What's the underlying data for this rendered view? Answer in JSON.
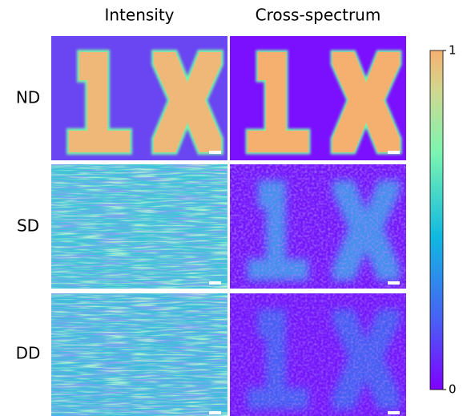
{
  "columns": [
    "Intensity",
    "Cross-spectrum"
  ],
  "rows": [
    "ND",
    "SD",
    "DD"
  ],
  "colorbar": {
    "ticks": [
      0,
      1
    ]
  }
}
